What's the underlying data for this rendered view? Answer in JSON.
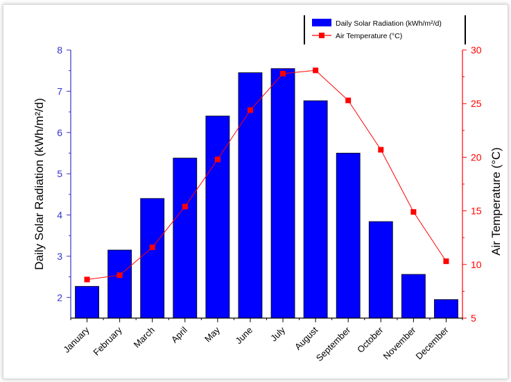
{
  "chart_data": {
    "type": "bar",
    "categories": [
      "January",
      "February",
      "March",
      "April",
      "May",
      "June",
      "July",
      "August",
      "September",
      "October",
      "November",
      "December"
    ],
    "series": [
      {
        "name": "Daily Solar Radiation (kWh/m²/d)",
        "type": "bar",
        "axis": "left",
        "color": "#0000ff",
        "values": [
          2.27,
          3.15,
          4.4,
          5.38,
          6.4,
          7.45,
          7.55,
          6.77,
          5.5,
          3.84,
          2.56,
          1.95
        ]
      },
      {
        "name": "Air Temperature (°C)",
        "type": "line",
        "axis": "right",
        "color": "#ff0000",
        "values": [
          8.6,
          9.0,
          11.6,
          15.4,
          19.8,
          24.4,
          27.8,
          28.1,
          25.3,
          20.7,
          14.9,
          10.3
        ]
      }
    ],
    "ylabel": "Daily Solar Radiation (kWh/m²/d)",
    "y2label": "Air Temperature (°C)",
    "ylim": [
      1.5,
      8
    ],
    "y2lim": [
      5,
      30
    ],
    "yticks": [
      2,
      3,
      4,
      5,
      6,
      7,
      8
    ],
    "y2ticks": [
      5,
      10,
      15,
      20,
      25,
      30
    ],
    "left_axis_color": "#3333cc",
    "right_axis_color": "#ff0000",
    "grid": false,
    "legend_position": "top-right"
  }
}
